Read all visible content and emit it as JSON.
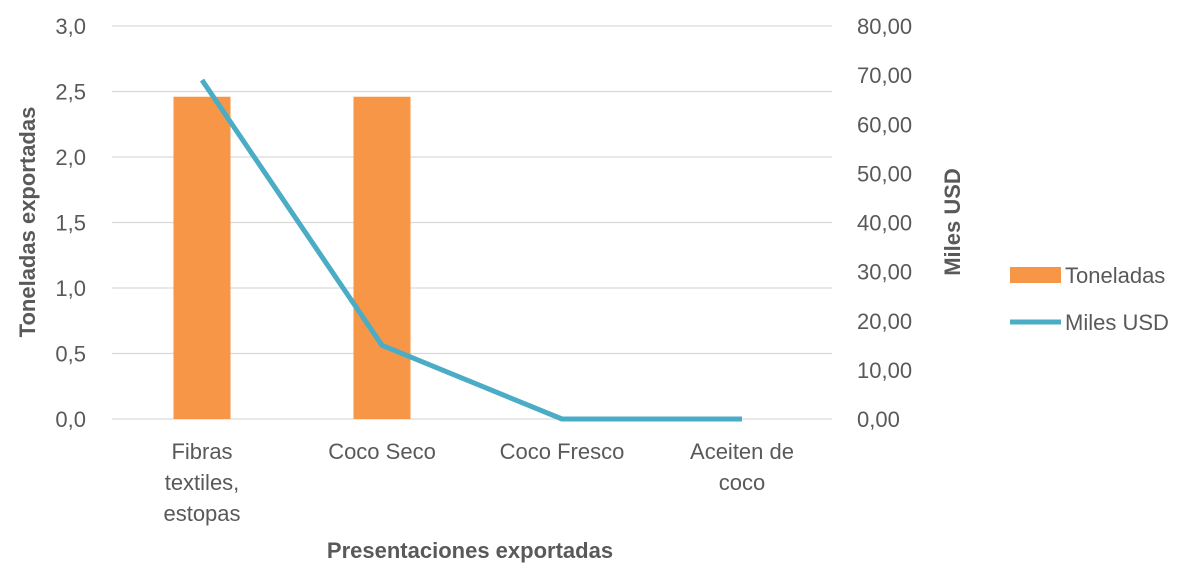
{
  "chart_data": {
    "type": "bar",
    "categories": [
      [
        "Fibras",
        "textiles,",
        "estopas"
      ],
      [
        "Coco Seco"
      ],
      [
        "Coco Fresco"
      ],
      [
        "Aceiten de",
        "coco"
      ]
    ],
    "series": [
      {
        "name": "Toneladas",
        "type": "bar",
        "axis": "left",
        "values": [
          2.46,
          2.46,
          0,
          0
        ],
        "color": "#f79646"
      },
      {
        "name": "Miles USD",
        "type": "line",
        "axis": "right",
        "values": [
          69.0,
          15.0,
          0,
          0
        ],
        "color": "#4bacc6"
      }
    ],
    "xlabel": "Presentaciones exportadas",
    "ylabel": "Toneladas exportadas",
    "y2label": "Miles  USD",
    "ylim": [
      0,
      3.0
    ],
    "y2lim": [
      0,
      80
    ],
    "yticks": [
      "0,0",
      "0,5",
      "1,0",
      "1,5",
      "2,0",
      "2,5",
      "3,0"
    ],
    "y2ticks": [
      "0,00",
      "10,00",
      "20,00",
      "30,00",
      "40,00",
      "50,00",
      "60,00",
      "70,00",
      "80,00"
    ],
    "grid": true,
    "legend_position": "right"
  }
}
